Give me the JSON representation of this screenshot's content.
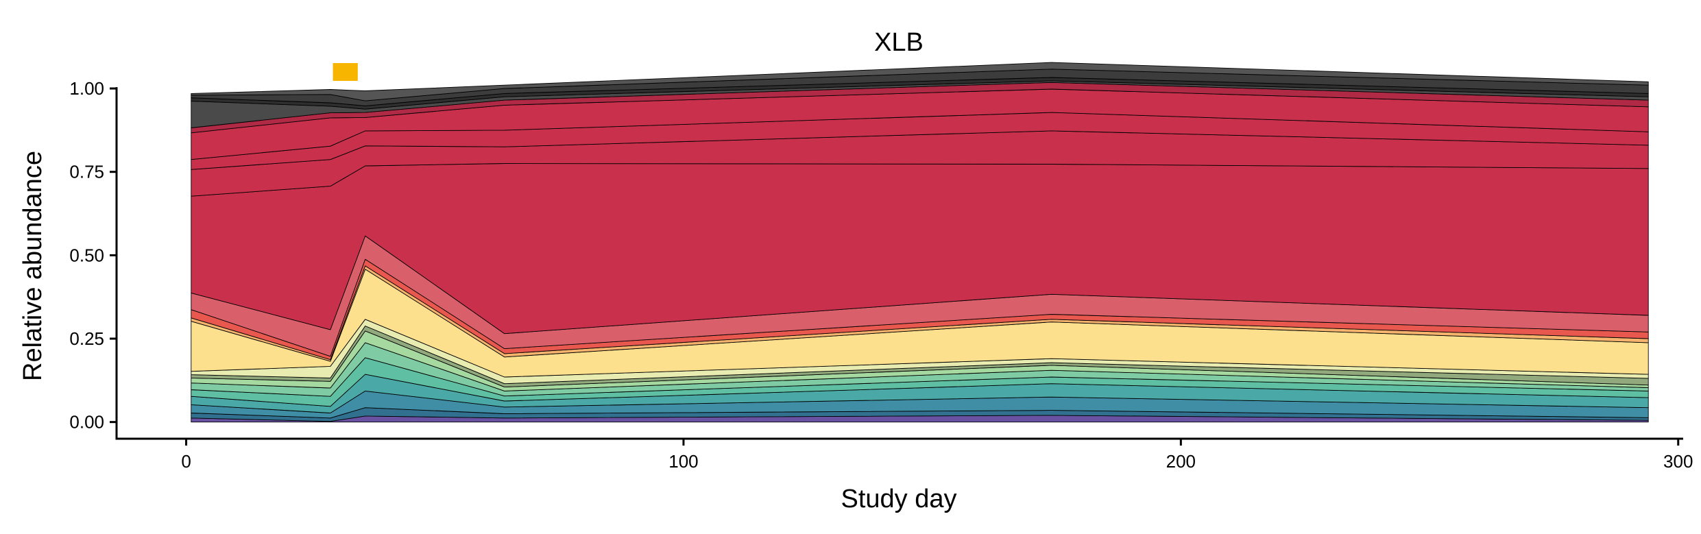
{
  "chart_data": {
    "type": "area",
    "title": "XLB",
    "xlabel": "Study day",
    "ylabel": "Relative abundance",
    "xlim": [
      -14,
      301
    ],
    "ylim": [
      -0.05,
      1.07
    ],
    "x_ticks": [
      0,
      100,
      200,
      300
    ],
    "x_tick_labels": [
      "0",
      "100",
      "200",
      "300"
    ],
    "y_ticks": [
      0,
      0.25,
      0.5,
      0.75,
      1.0
    ],
    "y_tick_labels": [
      "0.00",
      "0.25",
      "0.50",
      "0.75",
      "1.00"
    ],
    "grid": false,
    "legend": "none",
    "stacked": true,
    "x": [
      1,
      29,
      36,
      64,
      174,
      294
    ],
    "series": [
      {
        "color": "#6a52a3",
        "values": [
          0.012,
          0.002,
          0.018,
          0.012,
          0.02,
          0.005
        ]
      },
      {
        "color": "#31708f",
        "values": [
          0.015,
          0.01,
          0.025,
          0.013,
          0.015,
          0.008
        ]
      },
      {
        "color": "#3f8ea5",
        "values": [
          0.025,
          0.015,
          0.05,
          0.02,
          0.04,
          0.03
        ]
      },
      {
        "color": "#4aa9a6",
        "values": [
          0.025,
          0.02,
          0.05,
          0.018,
          0.04,
          0.03
        ]
      },
      {
        "color": "#5fbfa2",
        "values": [
          0.02,
          0.03,
          0.05,
          0.015,
          0.02,
          0.02
        ]
      },
      {
        "color": "#7fcba3",
        "values": [
          0.02,
          0.025,
          0.045,
          0.015,
          0.02,
          0.01
        ]
      },
      {
        "color": "#a5d9a0",
        "values": [
          0.015,
          0.02,
          0.035,
          0.012,
          0.015,
          0.008
        ]
      },
      {
        "color": "#92a87d",
        "values": [
          0.01,
          0.01,
          0.015,
          0.01,
          0.008,
          0.02
        ]
      },
      {
        "color": "#e8ecb0",
        "values": [
          0.01,
          0.035,
          0.02,
          0.02,
          0.012,
          0.012
        ]
      },
      {
        "color": "#fde08e",
        "values": [
          0.15,
          0.015,
          0.15,
          0.06,
          0.11,
          0.095
        ]
      },
      {
        "color": "#f5b36e",
        "values": [
          0.01,
          0.005,
          0.01,
          0.01,
          0.008,
          0.012
        ]
      },
      {
        "color": "#e8584e",
        "values": [
          0.025,
          0.01,
          0.02,
          0.015,
          0.015,
          0.02
        ]
      },
      {
        "color": "#d95f6a",
        "values": [
          0.05,
          0.08,
          0.07,
          0.045,
          0.06,
          0.05
        ]
      },
      {
        "color": "#c8304c",
        "values": [
          0.29,
          0.43,
          0.21,
          0.51,
          0.39,
          0.44
        ]
      },
      {
        "color": "#c8304c",
        "values": [
          0.08,
          0.08,
          0.06,
          0.05,
          0.1,
          0.07
        ]
      },
      {
        "color": "#c8304c",
        "values": [
          0.03,
          0.04,
          0.045,
          0.05,
          0.055,
          0.04
        ]
      },
      {
        "color": "#c8304c",
        "values": [
          0.08,
          0.085,
          0.04,
          0.075,
          0.07,
          0.075
        ]
      },
      {
        "color": "#b02a46",
        "values": [
          0.015,
          0.015,
          0.015,
          0.015,
          0.02,
          0.02
        ]
      },
      {
        "color": "#4a4a4a",
        "values": [
          0.08,
          0.02,
          0.01,
          0.01,
          0.005,
          0.01
        ]
      },
      {
        "color": "#2e2e2e",
        "values": [
          0.01,
          0.01,
          0.01,
          0.01,
          0.01,
          0.01
        ]
      },
      {
        "color": "#3c3c3c",
        "values": [
          0.008,
          0.025,
          0.015,
          0.015,
          0.025,
          0.025
        ]
      },
      {
        "color": "#555555",
        "values": [
          0.005,
          0.015,
          0.03,
          0.01,
          0.02,
          0.01
        ]
      }
    ],
    "annotations": [
      {
        "type": "marker",
        "color": "#f7b500",
        "x_start": 29.5,
        "x_end": 34.5
      }
    ]
  }
}
